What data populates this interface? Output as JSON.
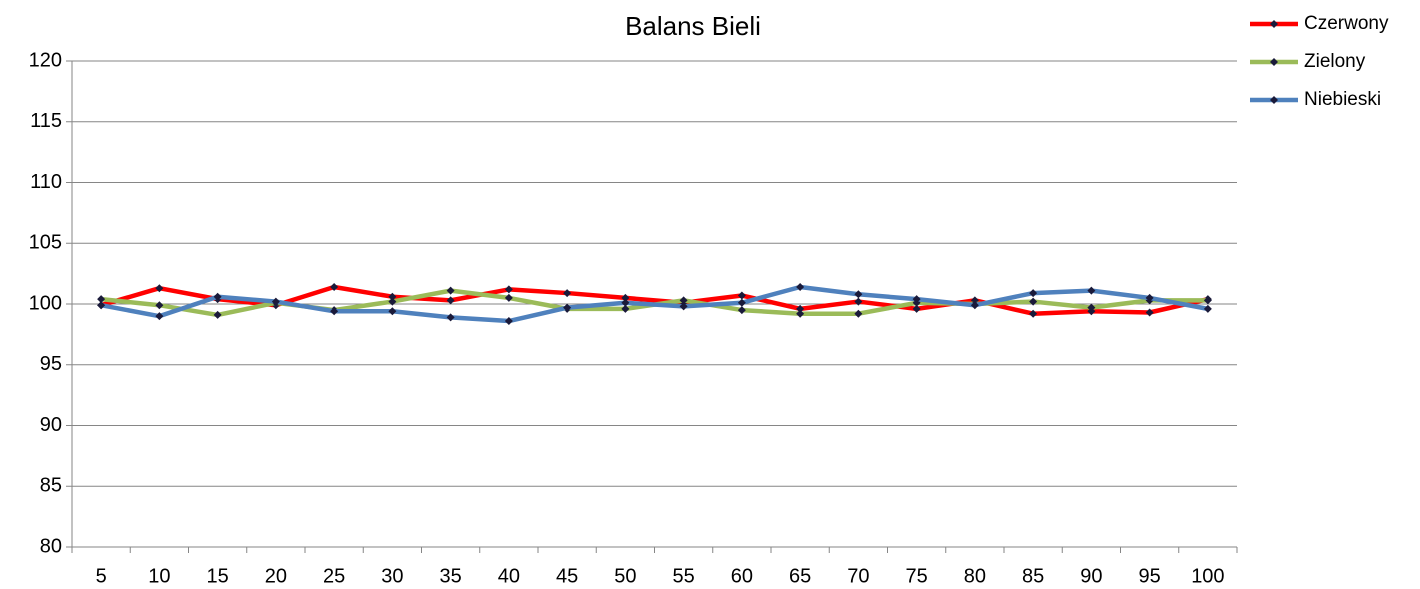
{
  "chart_data": {
    "type": "line",
    "title": "Balans Bieli",
    "categories": [
      5,
      10,
      15,
      20,
      25,
      30,
      35,
      40,
      45,
      50,
      55,
      60,
      65,
      70,
      75,
      80,
      85,
      90,
      95,
      100
    ],
    "series": [
      {
        "name": "Czerwony",
        "color": "#ff0000",
        "values": [
          99.9,
          101.3,
          100.4,
          99.9,
          101.4,
          100.6,
          100.3,
          101.2,
          100.9,
          100.5,
          100.1,
          100.7,
          99.6,
          100.2,
          99.6,
          100.3,
          99.2,
          99.4,
          99.3,
          100.4
        ]
      },
      {
        "name": "Zielony",
        "color": "#9bbb59",
        "values": [
          100.4,
          99.9,
          99.1,
          100.1,
          99.5,
          100.2,
          101.1,
          100.5,
          99.6,
          99.6,
          100.3,
          99.5,
          99.2,
          99.2,
          100.1,
          100.0,
          100.2,
          99.7,
          100.3,
          100.3
        ]
      },
      {
        "name": "Niebieski",
        "color": "#4f81bd",
        "values": [
          99.9,
          99.0,
          100.6,
          100.2,
          99.4,
          99.4,
          98.9,
          98.6,
          99.7,
          100.1,
          99.8,
          100.1,
          101.4,
          100.8,
          100.4,
          99.9,
          100.9,
          101.1,
          100.5,
          99.6
        ]
      }
    ],
    "marker_color": "#1a1a3a",
    "ylim": [
      80,
      120
    ],
    "yticks": [
      80,
      85,
      90,
      95,
      100,
      105,
      110,
      115,
      120
    ],
    "grid": true,
    "legend": "top-right"
  }
}
